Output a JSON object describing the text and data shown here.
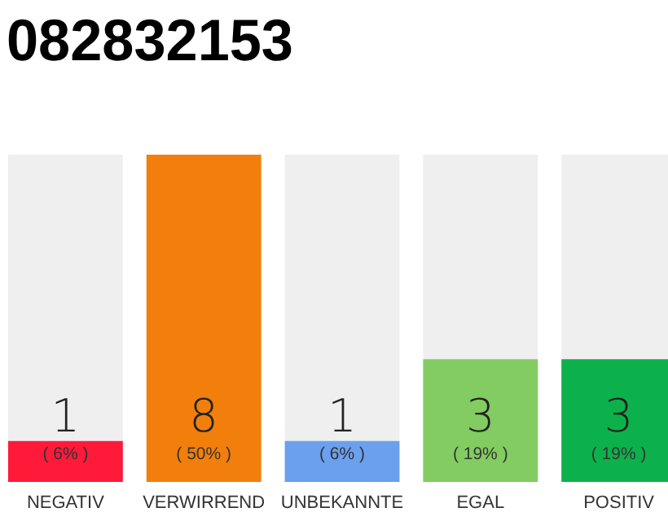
{
  "chart_data": {
    "type": "bar",
    "title": "082832153",
    "categories": [
      "NEGATIV",
      "VERWIRREND",
      "UNBEKANNTE",
      "EGAL",
      "POSITIV"
    ],
    "values": [
      1,
      8,
      1,
      3,
      3
    ],
    "colors": [
      "#ff1a3a",
      "#f27f0c",
      "#6aa0ee",
      "#82cc62",
      "#0db14b"
    ],
    "data_labels": true,
    "annotations": [
      "( 6% )",
      "( 50% )",
      "( 6% )",
      "( 19% )",
      "( 19% )"
    ]
  }
}
